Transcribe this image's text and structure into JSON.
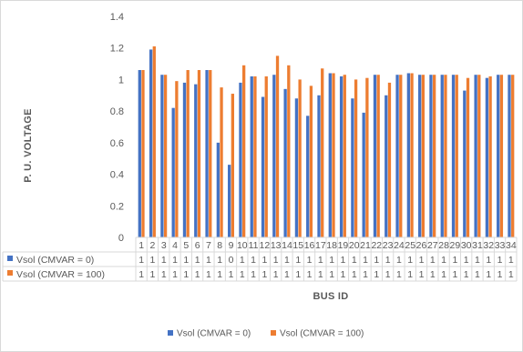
{
  "chart_data": {
    "type": "bar",
    "xlabel": "BUS ID",
    "ylabel": "P. U. VOLTAGE",
    "ylim": [
      0,
      1.4
    ],
    "yticks": [
      "0",
      "0.2",
      "0.4",
      "0.6",
      "0.8",
      "1",
      "1.2",
      "1.4"
    ],
    "grid": false,
    "legend_position": "bottom",
    "categories": [
      "1",
      "2",
      "3",
      "4",
      "5",
      "6",
      "7",
      "8",
      "9",
      "10",
      "11",
      "12",
      "13",
      "14",
      "15",
      "16",
      "17",
      "18",
      "19",
      "20",
      "21",
      "22",
      "23",
      "24",
      "25",
      "26",
      "27",
      "28",
      "29",
      "30",
      "31",
      "32",
      "33",
      "34"
    ],
    "series": [
      {
        "name": "Vsol (CMVAR = 0)",
        "color": "#4472c4",
        "values": [
          1.06,
          1.19,
          1.03,
          0.82,
          0.98,
          0.97,
          1.06,
          0.6,
          0.46,
          0.98,
          1.02,
          0.89,
          1.03,
          0.94,
          0.88,
          0.77,
          0.9,
          1.04,
          1.02,
          0.88,
          0.79,
          1.03,
          0.9,
          1.03,
          1.04,
          1.03,
          1.03,
          1.03,
          1.03,
          0.93,
          1.03,
          1.01,
          1.03,
          1.03
        ],
        "table_values": [
          "1",
          "1",
          "1",
          "1",
          "1",
          "1",
          "1",
          "1",
          "0",
          "1",
          "1",
          "1",
          "1",
          "1",
          "1",
          "1",
          "1",
          "1",
          "1",
          "1",
          "1",
          "1",
          "1",
          "1",
          "1",
          "1",
          "1",
          "1",
          "1",
          "1",
          "1",
          "1",
          "1",
          "1"
        ]
      },
      {
        "name": "Vsol (CMVAR = 100)",
        "color": "#ed7d31",
        "values": [
          1.06,
          1.21,
          1.03,
          0.99,
          1.06,
          1.06,
          1.06,
          0.95,
          0.91,
          1.09,
          1.02,
          1.02,
          1.15,
          1.09,
          1.0,
          0.96,
          1.07,
          1.04,
          1.03,
          1.0,
          1.01,
          1.03,
          0.98,
          1.03,
          1.04,
          1.03,
          1.03,
          1.03,
          1.03,
          1.01,
          1.03,
          1.02,
          1.03,
          1.03
        ],
        "table_values": [
          "1",
          "1",
          "1",
          "1",
          "1",
          "1",
          "1",
          "1",
          "1",
          "1",
          "1",
          "1",
          "1",
          "1",
          "1",
          "1",
          "1",
          "1",
          "1",
          "1",
          "1",
          "1",
          "1",
          "1",
          "1",
          "1",
          "1",
          "1",
          "1",
          "1",
          "1",
          "1",
          "1",
          "1"
        ]
      }
    ]
  }
}
